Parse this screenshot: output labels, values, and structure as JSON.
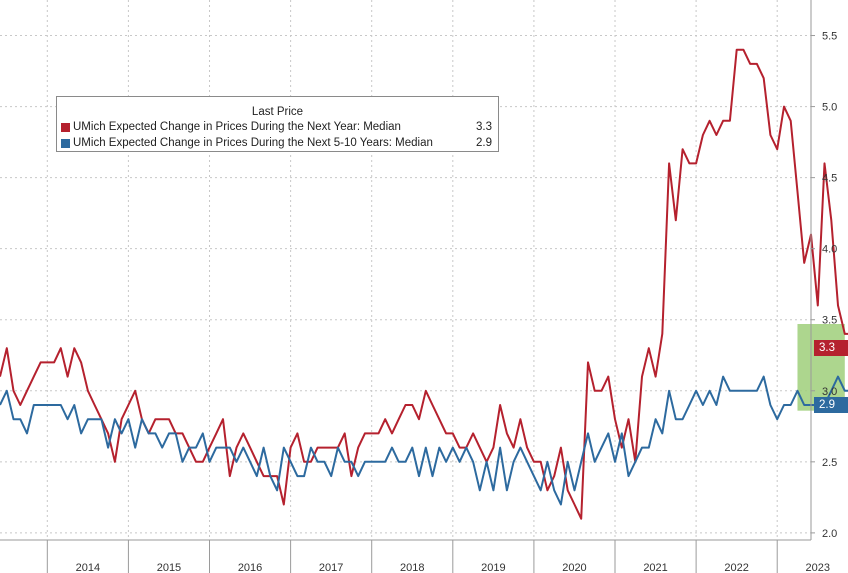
{
  "chart_data": {
    "type": "line",
    "title": "",
    "xlabel": "",
    "ylabel": "",
    "ylim": [
      1.95,
      5.75
    ],
    "y_ticks": [
      "2.0",
      "2.5",
      "3.0",
      "3.5",
      "4.0",
      "4.5",
      "5.0",
      "5.5"
    ],
    "x_tick_labels": [
      "2014",
      "2015",
      "2016",
      "2017",
      "2018",
      "2019",
      "2020",
      "2021",
      "2022",
      "2023"
    ],
    "x_start": "2013-06",
    "x_end": "2023-06",
    "grid": true,
    "legend": {
      "title": "Last Price",
      "placement": "top-left"
    },
    "highlight": {
      "from": "2023-04",
      "to": "2023-05",
      "color": "#9fcf7a"
    },
    "series": [
      {
        "name": "UMich Expected Change in Prices During the Next Year: Median",
        "last_value": "3.3",
        "color": "#b5212e",
        "values": [
          3.1,
          3.3,
          3.0,
          2.9,
          3.0,
          3.1,
          3.2,
          3.2,
          3.2,
          3.3,
          3.1,
          3.3,
          3.2,
          3.0,
          2.9,
          2.8,
          2.7,
          2.5,
          2.8,
          2.9,
          3.0,
          2.8,
          2.7,
          2.8,
          2.8,
          2.8,
          2.7,
          2.7,
          2.6,
          2.5,
          2.5,
          2.6,
          2.7,
          2.8,
          2.4,
          2.6,
          2.7,
          2.6,
          2.5,
          2.4,
          2.4,
          2.4,
          2.2,
          2.6,
          2.7,
          2.5,
          2.5,
          2.6,
          2.6,
          2.6,
          2.6,
          2.7,
          2.4,
          2.6,
          2.7,
          2.7,
          2.7,
          2.8,
          2.7,
          2.8,
          2.9,
          2.9,
          2.8,
          3.0,
          2.9,
          2.8,
          2.7,
          2.7,
          2.6,
          2.6,
          2.7,
          2.6,
          2.5,
          2.6,
          2.9,
          2.7,
          2.6,
          2.8,
          2.6,
          2.5,
          2.5,
          2.3,
          2.4,
          2.6,
          2.3,
          2.2,
          2.1,
          3.2,
          3.0,
          3.0,
          3.1,
          2.8,
          2.6,
          2.8,
          2.5,
          3.1,
          3.3,
          3.1,
          3.4,
          4.6,
          4.2,
          4.7,
          4.6,
          4.6,
          4.8,
          4.9,
          4.8,
          4.9,
          4.9,
          5.4,
          5.4,
          5.3,
          5.3,
          5.2,
          4.8,
          4.7,
          5.0,
          4.9,
          4.4,
          3.9,
          4.1,
          3.6,
          4.6,
          4.2,
          3.6,
          3.4,
          3.4,
          3.3
        ]
      },
      {
        "name": "UMich Expected Change in Prices During the Next 5-10 Years: Median",
        "last_value": "2.9",
        "color": "#2d6a9f",
        "values": [
          2.9,
          3.0,
          2.8,
          2.8,
          2.7,
          2.9,
          2.9,
          2.9,
          2.9,
          2.9,
          2.8,
          2.9,
          2.7,
          2.8,
          2.8,
          2.8,
          2.6,
          2.8,
          2.7,
          2.8,
          2.6,
          2.8,
          2.7,
          2.7,
          2.6,
          2.7,
          2.7,
          2.5,
          2.6,
          2.6,
          2.7,
          2.5,
          2.6,
          2.6,
          2.6,
          2.5,
          2.6,
          2.5,
          2.4,
          2.6,
          2.4,
          2.3,
          2.6,
          2.5,
          2.4,
          2.4,
          2.6,
          2.5,
          2.5,
          2.4,
          2.6,
          2.5,
          2.5,
          2.4,
          2.5,
          2.5,
          2.5,
          2.5,
          2.6,
          2.5,
          2.5,
          2.6,
          2.4,
          2.6,
          2.4,
          2.6,
          2.5,
          2.6,
          2.5,
          2.6,
          2.5,
          2.3,
          2.5,
          2.3,
          2.6,
          2.3,
          2.5,
          2.6,
          2.5,
          2.4,
          2.3,
          2.5,
          2.3,
          2.2,
          2.5,
          2.3,
          2.5,
          2.7,
          2.5,
          2.6,
          2.7,
          2.5,
          2.7,
          2.4,
          2.5,
          2.6,
          2.6,
          2.8,
          2.7,
          3.0,
          2.8,
          2.8,
          2.9,
          3.0,
          2.9,
          3.0,
          2.9,
          3.1,
          3.0,
          3.0,
          3.0,
          3.0,
          3.0,
          3.1,
          2.9,
          2.8,
          2.9,
          2.9,
          3.0,
          2.9,
          2.9,
          2.9,
          2.9,
          3.0,
          3.1,
          3.0,
          3.0,
          2.9
        ]
      }
    ]
  }
}
